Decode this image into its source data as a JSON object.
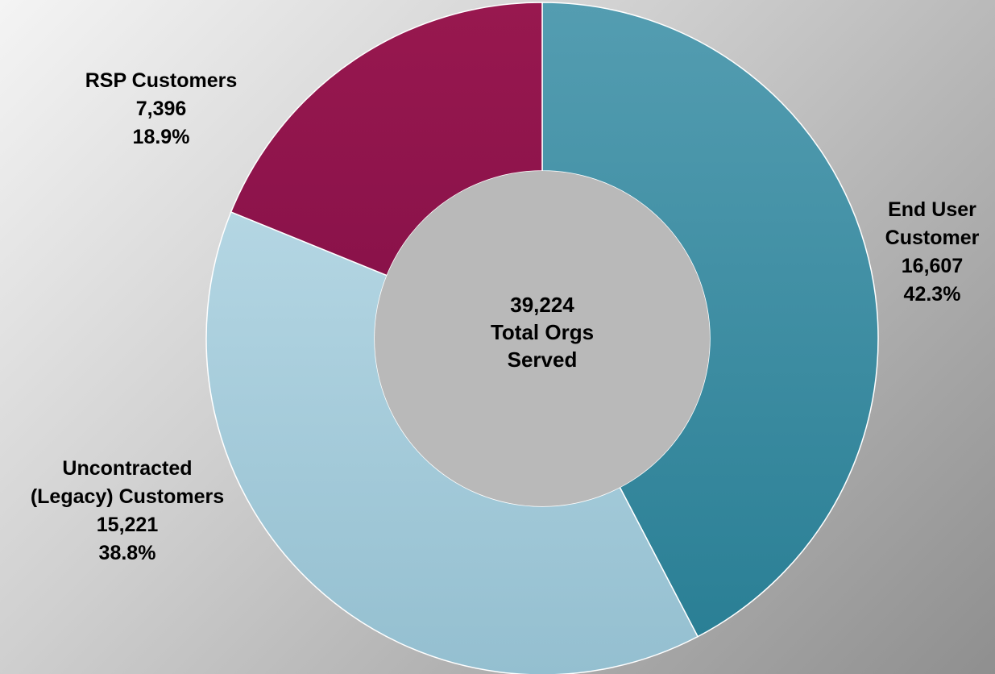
{
  "chart_data": {
    "type": "pie",
    "variant": "donut",
    "title": "",
    "center_label": {
      "value": "39,224",
      "line1": "Total Orgs",
      "line2": "Served"
    },
    "slices": [
      {
        "name_lines": [
          "End User",
          "Customer"
        ],
        "value": 16607,
        "value_label": "16,607",
        "percent": 42.3,
        "percent_label": "42.3%",
        "color": "#3a93a8",
        "color_light": "#549db1",
        "color_dark": "#2a7f95"
      },
      {
        "name_lines": [
          "Uncontracted",
          "(Legacy) Customers"
        ],
        "value": 15221,
        "value_label": "15,221",
        "percent": 38.8,
        "percent_label": "38.8%",
        "color": "#a5cbdc",
        "color_light": "#b4d6e3",
        "color_dark": "#94bfd0"
      },
      {
        "name_lines": [
          "RSP Customers"
        ],
        "value": 7396,
        "value_label": "7,396",
        "percent": 18.9,
        "percent_label": "18.9%",
        "color": "#93154f",
        "color_light": "#98184f",
        "color_dark": "#8a124a"
      }
    ],
    "center_fill": "#b9b9b9",
    "background": [
      "#f4f4f4",
      "#8f8f8f"
    ]
  }
}
